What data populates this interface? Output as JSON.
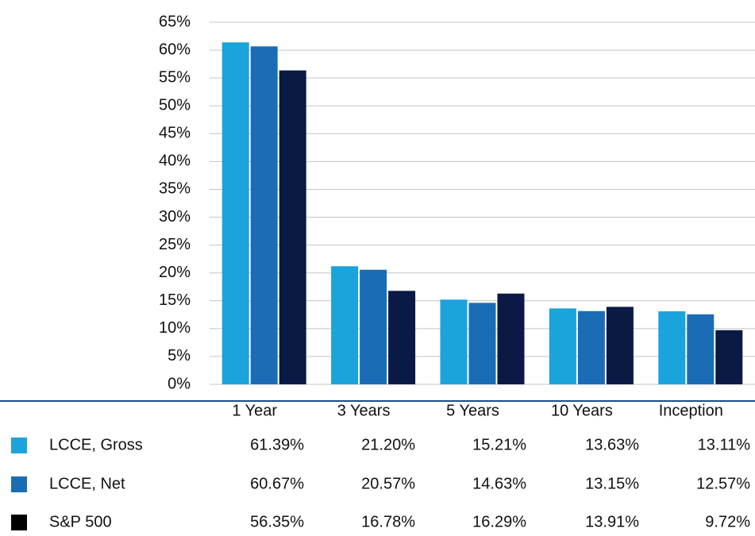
{
  "chart_data": {
    "type": "bar",
    "categories": [
      "1 Year",
      "3 Years",
      "5 Years",
      "10 Years",
      "Inception"
    ],
    "series": [
      {
        "name": "LCCE, Gross",
        "color": "#1ba3dc",
        "values": [
          61.39,
          21.2,
          15.21,
          13.63,
          13.11
        ],
        "value_labels": [
          "61.39%",
          "21.20%",
          "15.21%",
          "13.63%",
          "13.11%"
        ]
      },
      {
        "name": "LCCE, Net",
        "color": "#1a6db5",
        "values": [
          60.67,
          20.57,
          14.63,
          13.15,
          12.57
        ],
        "value_labels": [
          "60.67%",
          "20.57%",
          "14.63%",
          "13.15%",
          "12.57%"
        ]
      },
      {
        "name": "S&P 500",
        "color": "#0a1a45",
        "values": [
          56.35,
          16.78,
          16.29,
          13.91,
          9.72
        ],
        "value_labels": [
          "56.35%",
          "16.78%",
          "16.29%",
          "13.91%",
          "9.72%"
        ]
      }
    ],
    "ylim": [
      0,
      65
    ],
    "yticks": [
      {
        "value": 0,
        "label": "0%"
      },
      {
        "value": 5,
        "label": "5%"
      },
      {
        "value": 10,
        "label": "10%"
      },
      {
        "value": 15,
        "label": "15%"
      },
      {
        "value": 20,
        "label": "20%"
      },
      {
        "value": 25,
        "label": "25%"
      },
      {
        "value": 30,
        "label": "30%"
      },
      {
        "value": 35,
        "label": "35%"
      },
      {
        "value": 40,
        "label": "40%"
      },
      {
        "value": 45,
        "label": "45%"
      },
      {
        "value": 50,
        "label": "50%"
      },
      {
        "value": 55,
        "label": "55%"
      },
      {
        "value": 60,
        "label": "60%"
      },
      {
        "value": 65,
        "label": "65%"
      }
    ],
    "grid": true
  }
}
